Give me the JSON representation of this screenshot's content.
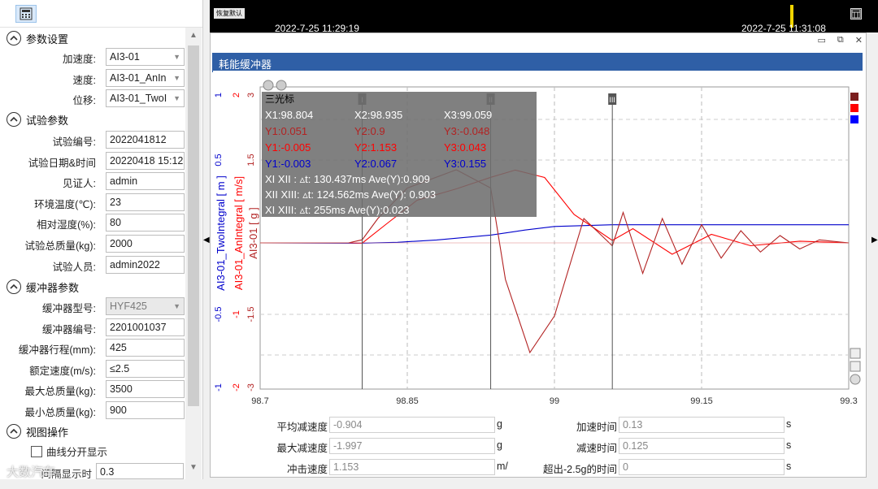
{
  "left_panel": {
    "sections": {
      "params": "参数设置",
      "test": "试验参数",
      "buffer": "缓冲器参数",
      "view": "视图操作"
    },
    "params": [
      {
        "label": "加速度:",
        "value": "AI3-01"
      },
      {
        "label": "速度:",
        "value": "AI3-01_AnIn"
      },
      {
        "label": "位移:",
        "value": "AI3-01_TwoI"
      }
    ],
    "test": [
      {
        "label": "试验编号:",
        "value": "2022041812"
      },
      {
        "label": "试验日期&时间",
        "value": "20220418 15:12"
      },
      {
        "label": "见证人:",
        "value": "admin"
      },
      {
        "label": "环境温度(℃):",
        "value": "23"
      },
      {
        "label": "相对湿度(%):",
        "value": "80"
      },
      {
        "label": "试验总质量(kg):",
        "value": "2000"
      },
      {
        "label": "试验人员:",
        "value": "admin2022"
      }
    ],
    "buffer": [
      {
        "label": "缓冲器型号:",
        "value": "HYF425"
      },
      {
        "label": "缓冲器编号:",
        "value": "2201001037"
      },
      {
        "label": "缓冲器行程(mm):",
        "value": "425"
      },
      {
        "label": "额定速度(m/s):",
        "value": "≤2.5"
      },
      {
        "label": "最大总质量(kg):",
        "value": "3500"
      },
      {
        "label": "最小总质量(kg):",
        "value": "900"
      }
    ],
    "split_curves_label": "曲线分开显示",
    "interval_label": "间隔显示时",
    "interval_value": "0.3",
    "watermark": "大数汽车"
  },
  "top_strip": {
    "tag": "恢复默认",
    "date_left": "2022-7-25 11:29:19",
    "date_right": "2022-7-25 11:31:08"
  },
  "window": {
    "title": "耗能缓冲器",
    "controls": [
      "restore-icon",
      "pin-icon",
      "close-icon"
    ]
  },
  "cursor_box": {
    "title": "三光标",
    "x": [
      "X1:98.804",
      "X2:98.935",
      "X3:99.059"
    ],
    "rows": [
      {
        "color": "#b22222",
        "cells": [
          "Y1:0.051",
          "Y2:0.9",
          "Y3:-0.048"
        ]
      },
      {
        "color": "#ff0000",
        "cells": [
          "Y1:-0.005",
          "Y2:1.153",
          "Y3:0.043"
        ]
      },
      {
        "color": "#0000cc",
        "cells": [
          "Y1:-0.003",
          "Y2:0.067",
          "Y3:0.155"
        ]
      }
    ],
    "deltas": [
      "XI  XII : ▵t: 130.437ms Ave(Y):0.909",
      "XII XIII: ▵t: 124.562ms Ave(Y):  0.903",
      "XI  XIII: ▵t: 255ms Ave(Y):0.023"
    ]
  },
  "chart_data": {
    "type": "line",
    "x_ticks": [
      "98.7",
      "98.85",
      "99",
      "99.15",
      "99.3"
    ],
    "xlim": [
      98.7,
      99.3
    ],
    "cursor_x": [
      98.804,
      98.935,
      99.059
    ],
    "cursor_labels": [
      "I",
      "II",
      "III"
    ],
    "axes": [
      {
        "name": "AI3-01_TwoIntegral  [ m ]",
        "color": "#0000cc",
        "ticks": [
          "1",
          "0.5",
          "-0.5",
          "-1"
        ],
        "ylim": [
          -1,
          1
        ]
      },
      {
        "name": "AI3-01_AnIntegral  [ m/s]",
        "color": "#ff0000",
        "ticks": [
          "2",
          "-1",
          "-2"
        ],
        "ylim": [
          -2,
          2
        ]
      },
      {
        "name": "AI3-01  [ g ]",
        "color": "#b22222",
        "ticks": [
          "3",
          "1.5",
          "-1.5",
          "-3"
        ],
        "ylim": [
          -3,
          3
        ]
      }
    ],
    "legend_colors": [
      "#7b1e1e",
      "#ff0000",
      "#0000ff"
    ],
    "series": [
      {
        "color": "#0000cc",
        "x": [
          98.7,
          98.8,
          98.84,
          98.88,
          98.935,
          98.97,
          99.0,
          99.059,
          99.1,
          99.3
        ],
        "y": [
          0,
          -0.003,
          0.005,
          0.025,
          0.067,
          0.11,
          0.14,
          0.155,
          0.155,
          0.155
        ]
      },
      {
        "color": "#ff0000",
        "x": [
          98.7,
          98.79,
          98.804,
          98.83,
          98.86,
          98.9,
          98.935,
          98.96,
          98.99,
          99.02,
          99.059,
          99.08,
          99.12,
          99.16,
          99.2,
          99.25,
          99.3
        ],
        "y": [
          0,
          0,
          -0.005,
          0.35,
          0.75,
          0.95,
          1.153,
          1.28,
          1.15,
          0.5,
          0.043,
          0.25,
          -0.2,
          0.15,
          -0.05,
          0.03,
          0.0
        ]
      },
      {
        "color": "#b22222",
        "x": [
          98.7,
          98.79,
          98.804,
          98.82,
          98.85,
          98.9,
          98.935,
          98.95,
          98.975,
          99.0,
          99.03,
          99.059,
          99.07,
          99.09,
          99.11,
          99.13,
          99.15,
          99.17,
          99.19,
          99.21,
          99.23,
          99.25,
          99.27,
          99.3
        ],
        "y": [
          0,
          0,
          0.051,
          0.4,
          0.9,
          1.2,
          0.9,
          -0.6,
          -1.8,
          -1.2,
          0.4,
          -0.048,
          0.5,
          -0.5,
          0.4,
          -0.35,
          0.3,
          -0.25,
          0.2,
          -0.15,
          0.12,
          -0.1,
          0.05,
          0.0
        ]
      }
    ]
  },
  "stats": [
    {
      "label": "平均减速度",
      "value": "-0.904",
      "unit": "g"
    },
    {
      "label": "加速时间",
      "value": "0.13",
      "unit": "s"
    },
    {
      "label": "最大减速度",
      "value": "-1.997",
      "unit": "g"
    },
    {
      "label": "减速时间",
      "value": "0.125",
      "unit": "s"
    },
    {
      "label": "冲击速度",
      "value": "1.153",
      "unit": "m/"
    },
    {
      "label": "超出-2.5g的时间",
      "value": "0",
      "unit": "s"
    }
  ]
}
